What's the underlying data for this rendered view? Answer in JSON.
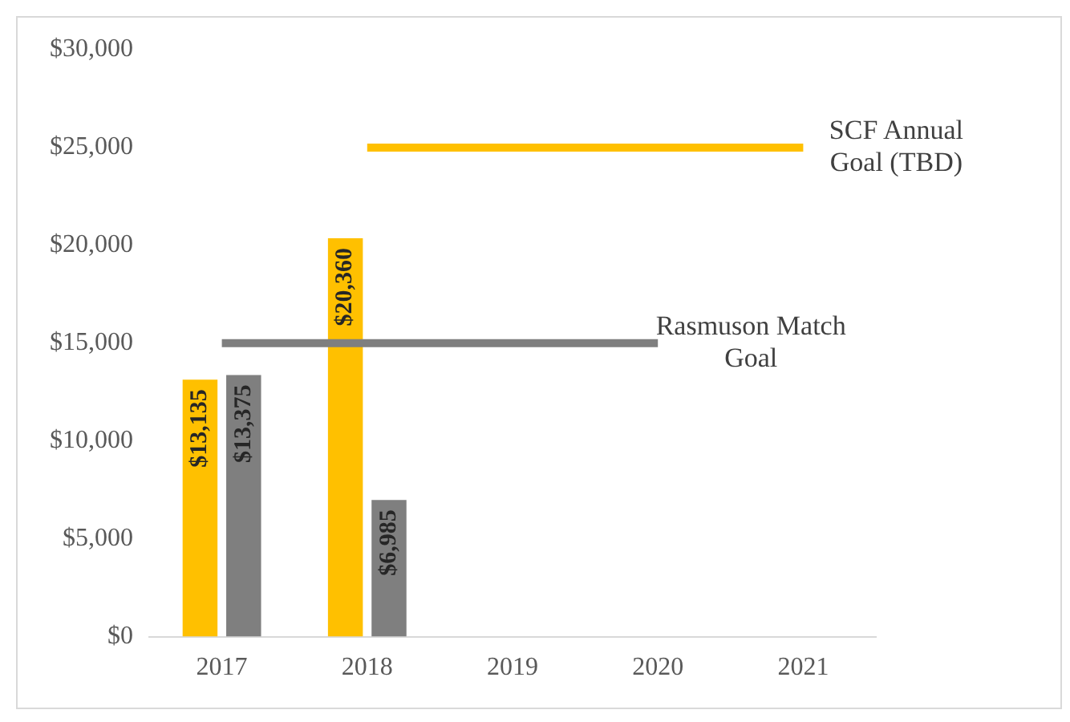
{
  "chart_data": {
    "type": "bar",
    "categories": [
      "2017",
      "2018",
      "2019",
      "2020",
      "2021"
    ],
    "series": [
      {
        "color": "#ffc000",
        "values": [
          13135,
          20360,
          null,
          null,
          null
        ],
        "value_labels": [
          "$13,135",
          "$20,360",
          null,
          null,
          null
        ]
      },
      {
        "color": "#7f7f7f",
        "values": [
          13375,
          6985,
          null,
          null,
          null
        ],
        "value_labels": [
          "$13,375",
          "$6,985",
          null,
          null,
          null
        ]
      },
      {
        "type": "line",
        "name": "SCF Annual Goal (TBD)",
        "color": "#ffc000",
        "values": [
          null,
          25000,
          25000,
          25000,
          25000
        ]
      },
      {
        "type": "line",
        "name": "Rasmuson Match Goal",
        "color": "#7f7f7f",
        "values": [
          15000,
          15000,
          15000,
          15000,
          null
        ]
      }
    ],
    "ylim": [
      0,
      30000
    ],
    "yticks": [
      {
        "value": 0,
        "label": "$0"
      },
      {
        "value": 5000,
        "label": "$5,000"
      },
      {
        "value": 10000,
        "label": "$10,000"
      },
      {
        "value": 15000,
        "label": "$15,000"
      },
      {
        "value": 20000,
        "label": "$20,000"
      },
      {
        "value": 25000,
        "label": "$25,000"
      },
      {
        "value": 30000,
        "label": "$30,000"
      }
    ],
    "grid": false,
    "legend": false,
    "marker": "none"
  }
}
